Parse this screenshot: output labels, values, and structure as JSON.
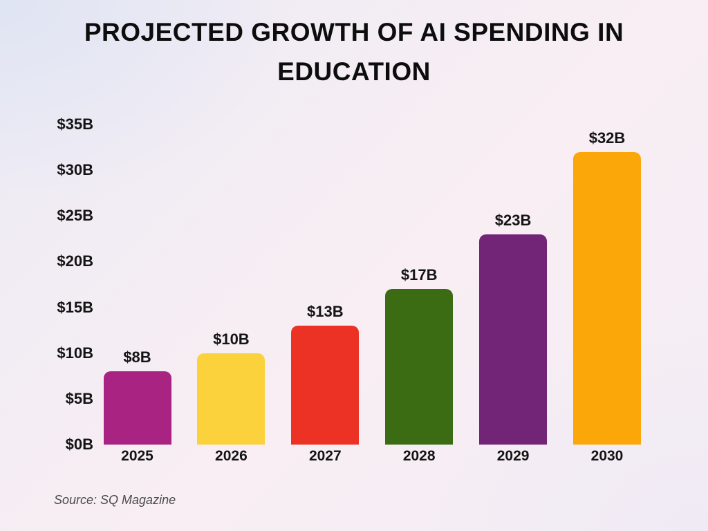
{
  "header": {
    "title_line1": "PROJECTED GROWTH OF AI SPENDING IN",
    "title_line2": "EDUCATION"
  },
  "footer": {
    "source": "Source: SQ Magazine"
  },
  "chart_data": {
    "type": "bar",
    "title": "PROJECTED GROWTH OF AI SPENDING IN EDUCATION",
    "categories": [
      "2025",
      "2026",
      "2027",
      "2028",
      "2029",
      "2030"
    ],
    "values": [
      8,
      10,
      13,
      17,
      23,
      32
    ],
    "value_labels": [
      "$8B",
      "$10B",
      "$13B",
      "$17B",
      "$23B",
      "$32B"
    ],
    "bar_colors": [
      "#a92382",
      "#fbd23b",
      "#ec3224",
      "#3b6b13",
      "#722577",
      "#fba70a"
    ],
    "xlabel": "",
    "ylabel": "",
    "ylim": [
      0,
      35
    ],
    "ytick_step": 5,
    "ytick_labels": [
      "$0B",
      "$5B",
      "$10B",
      "$15B",
      "$20B",
      "$25B",
      "$30B",
      "$35B"
    ],
    "grid": false,
    "legend": false,
    "text_color": "#141414",
    "source": "Source: SQ Magazine"
  }
}
